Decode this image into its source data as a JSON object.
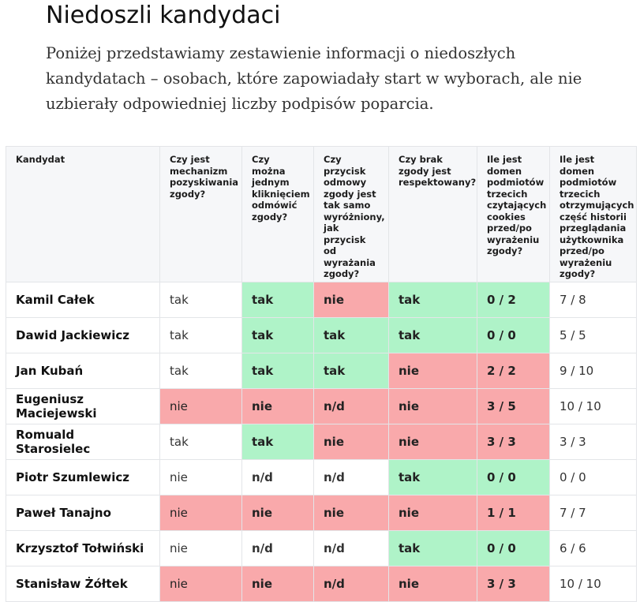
{
  "page": {
    "title": "Niedoszli kandydaci",
    "lead": "Poniżej przedstawiamy zestawienie informacji o niedoszłych kandydatach – osobach, które zapowiadały start w wyborach, ale nie uzbierały odpowiedniej liczby podpisów poparcia."
  },
  "colors": {
    "positive": "#aff3c8",
    "negative": "#f9a9ab",
    "header_bg": "#f6f7f9"
  },
  "table": {
    "headers": [
      "Kandydat",
      "Czy jest mechanizm pozyskiwania zgody?",
      "Czy można jednym kliknięciem odmówić zgody?",
      "Czy przycisk odmowy zgody jest tak samo wyróżniony, jak przycisk od wyrażania zgody?",
      "Czy brak zgody jest respektowany?",
      "Ile jest domen podmiotów trzecich czytających cookies przed/po wyrażeniu zgody?",
      "Ile jest domen podmiotów trzecich otrzymujących część historii przeglądania użytkownika przed/po wyrażeniu zgody?"
    ],
    "rows": [
      {
        "name": "Kamil Całek",
        "cells": [
          {
            "text": "tak",
            "status": "none"
          },
          {
            "text": "tak",
            "status": "green"
          },
          {
            "text": "nie",
            "status": "red"
          },
          {
            "text": "tak",
            "status": "green"
          },
          {
            "text": "0 / 2",
            "status": "green"
          },
          {
            "text": "7 / 8",
            "status": "none"
          }
        ]
      },
      {
        "name": "Dawid Jackiewicz",
        "cells": [
          {
            "text": "tak",
            "status": "none"
          },
          {
            "text": "tak",
            "status": "green"
          },
          {
            "text": "tak",
            "status": "green"
          },
          {
            "text": "tak",
            "status": "green"
          },
          {
            "text": "0 / 0",
            "status": "green"
          },
          {
            "text": "5 / 5",
            "status": "none"
          }
        ]
      },
      {
        "name": "Jan Kubań",
        "cells": [
          {
            "text": "tak",
            "status": "none"
          },
          {
            "text": "tak",
            "status": "green"
          },
          {
            "text": "tak",
            "status": "green"
          },
          {
            "text": "nie",
            "status": "red"
          },
          {
            "text": "2 / 2",
            "status": "red"
          },
          {
            "text": "9 / 10",
            "status": "none"
          }
        ]
      },
      {
        "name": "Eugeniusz Maciejewski",
        "cells": [
          {
            "text": "nie",
            "status": "red"
          },
          {
            "text": "nie",
            "status": "red"
          },
          {
            "text": "n/d",
            "status": "red"
          },
          {
            "text": "nie",
            "status": "red"
          },
          {
            "text": "3 / 5",
            "status": "red"
          },
          {
            "text": "10 / 10",
            "status": "none"
          }
        ]
      },
      {
        "name": "Romuald Starosielec",
        "cells": [
          {
            "text": "tak",
            "status": "none"
          },
          {
            "text": "tak",
            "status": "green"
          },
          {
            "text": "nie",
            "status": "red"
          },
          {
            "text": "nie",
            "status": "red"
          },
          {
            "text": "3 / 3",
            "status": "red"
          },
          {
            "text": "3 / 3",
            "status": "none"
          }
        ]
      },
      {
        "name": "Piotr Szumlewicz",
        "cells": [
          {
            "text": "nie",
            "status": "none"
          },
          {
            "text": "n/d",
            "status": "none"
          },
          {
            "text": "n/d",
            "status": "none"
          },
          {
            "text": "tak",
            "status": "green"
          },
          {
            "text": "0 / 0",
            "status": "green"
          },
          {
            "text": "0 / 0",
            "status": "none"
          }
        ]
      },
      {
        "name": "Paweł Tanajno",
        "cells": [
          {
            "text": "nie",
            "status": "red"
          },
          {
            "text": "nie",
            "status": "red"
          },
          {
            "text": "nie",
            "status": "red"
          },
          {
            "text": "nie",
            "status": "red"
          },
          {
            "text": "1 / 1",
            "status": "red"
          },
          {
            "text": "7 / 7",
            "status": "none"
          }
        ]
      },
      {
        "name": "Krzysztof Tołwiński",
        "cells": [
          {
            "text": "nie",
            "status": "none"
          },
          {
            "text": "n/d",
            "status": "none"
          },
          {
            "text": "n/d",
            "status": "none"
          },
          {
            "text": "tak",
            "status": "green"
          },
          {
            "text": "0 / 0",
            "status": "green"
          },
          {
            "text": "6 / 6",
            "status": "none"
          }
        ]
      },
      {
        "name": "Stanisław Żółtek",
        "cells": [
          {
            "text": "nie",
            "status": "red"
          },
          {
            "text": "nie",
            "status": "red"
          },
          {
            "text": "n/d",
            "status": "red"
          },
          {
            "text": "nie",
            "status": "red"
          },
          {
            "text": "3 / 3",
            "status": "red"
          },
          {
            "text": "10 / 10",
            "status": "none"
          }
        ]
      }
    ]
  }
}
